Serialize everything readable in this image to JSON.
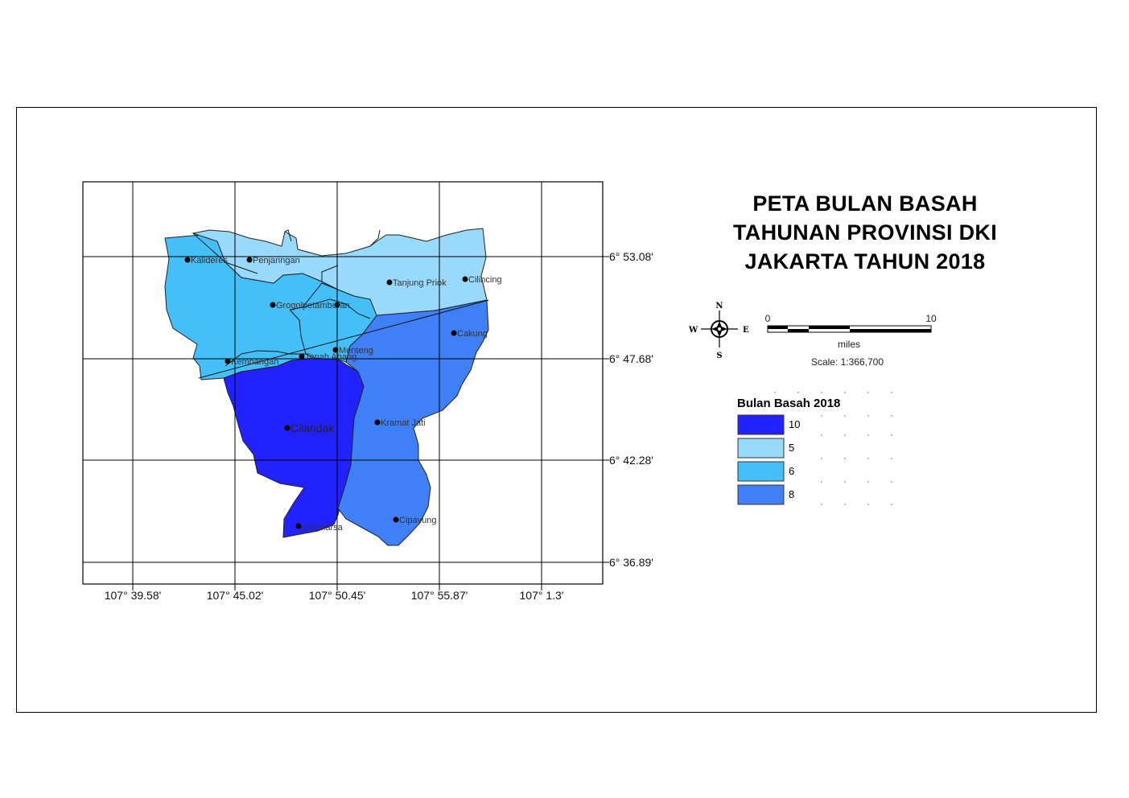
{
  "title": {
    "line1": "PETA BULAN BASAH",
    "line2": "TAHUNAN PROVINSI DKI",
    "line3": "JAKARTA TAHUN 2018"
  },
  "grid": {
    "lat_labels": [
      "6° 53.08'",
      "6° 47.68'",
      "6° 42.28'",
      "6° 36.89'"
    ],
    "lon_labels": [
      "107° 39.58'",
      "107° 45.02'",
      "107° 50.45'",
      "107° 55.87'",
      "107° 1.3'"
    ]
  },
  "places": {
    "kalideres": "Kalideres",
    "penjaringan": "Penjaringan",
    "tanjung_priok": "Tanjung Priok",
    "cilincing": "Cilincing",
    "grogol": "Grogolpetamburan",
    "cakung": "Cakung",
    "kembangan": "Kembangan",
    "tanah_abang": "Tanah Abang",
    "menteng": "Menteng",
    "cilandak": "Cilandak",
    "kramat_jati": "Kramat Jati",
    "jagakarsa": "Jagakarsa",
    "cipayung": "Cipayung"
  },
  "compass": {
    "n": "N",
    "s": "S",
    "e": "E",
    "w": "W"
  },
  "scale_bar": {
    "start": "0",
    "end": "10",
    "unit": "miles",
    "scale_text": "Scale: 1:366,700"
  },
  "legend": {
    "title": "Bulan Basah 2018",
    "items": [
      {
        "label": "10",
        "color": "#2222ff"
      },
      {
        "label": "5",
        "color": "#99d9fb"
      },
      {
        "label": "6",
        "color": "#44bff7"
      },
      {
        "label": "8",
        "color": "#3f7ff7"
      }
    ]
  }
}
